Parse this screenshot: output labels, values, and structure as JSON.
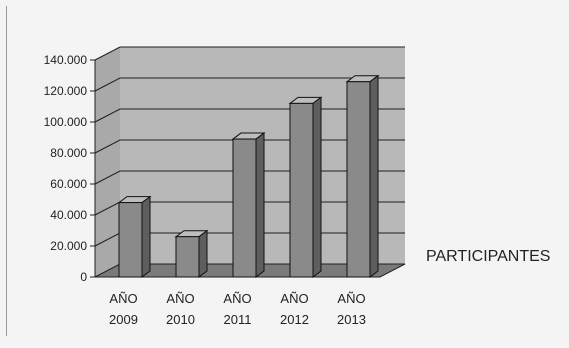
{
  "chart_data": {
    "type": "bar",
    "categories": [
      [
        "AÑO",
        "2009"
      ],
      [
        "AÑO",
        "2010"
      ],
      [
        "AÑO",
        "2011"
      ],
      [
        "AÑO",
        "2012"
      ],
      [
        "AÑO",
        "2013"
      ]
    ],
    "series": [
      {
        "name": "PARTICIPANTES",
        "values": [
          48000,
          26000,
          89000,
          112000,
          126000
        ]
      }
    ],
    "yticks": [
      "0",
      "20.000",
      "40.000",
      "60.000",
      "80.000",
      "100.000",
      "120.000",
      "140.000"
    ],
    "ylim": [
      0,
      140000
    ],
    "grid": true,
    "legend": "right",
    "colors": {
      "bar_front": "#8a8a8a",
      "bar_side": "#5e5e5e",
      "bar_top": "#bdbdbd",
      "wall": "#b8b8b8",
      "floor": "#7a7a7a",
      "grid": "#202020",
      "text": "#222222"
    }
  }
}
